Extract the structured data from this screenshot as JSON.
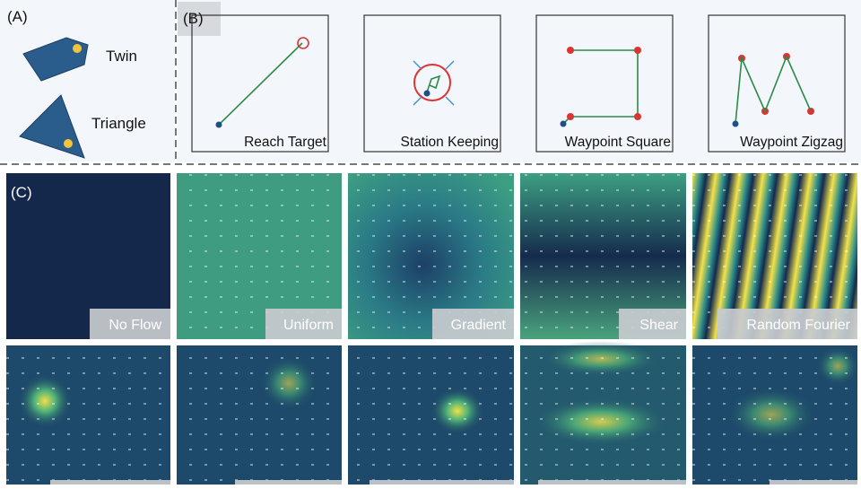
{
  "panels": {
    "a": {
      "label": "(A)",
      "shapes": [
        "Twin",
        "Triangle"
      ]
    },
    "b": {
      "label": "(B)",
      "tasks": [
        "Reach Target",
        "Station Keeping",
        "Waypoint Square",
        "Waypoint Zigzag"
      ]
    },
    "c": {
      "label": "(C)",
      "flows": [
        "No Flow",
        "Uniform",
        "Gradient",
        "Shear",
        "Random Fourier"
      ]
    }
  }
}
